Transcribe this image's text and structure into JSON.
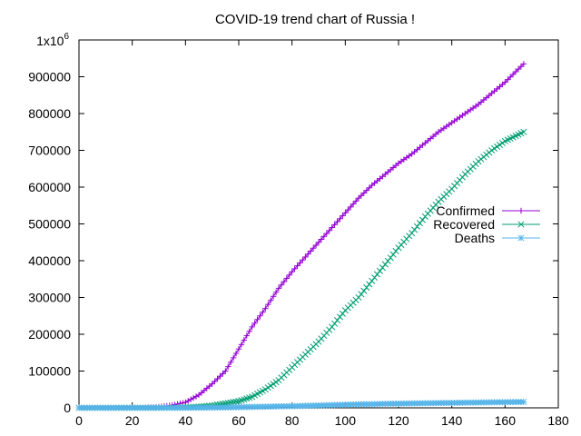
{
  "chart_data": {
    "type": "line",
    "title": "COVID-19 trend chart of Russia !",
    "xlabel": "",
    "ylabel": "",
    "xlim": [
      0,
      180
    ],
    "ylim": [
      0,
      1000000
    ],
    "x_ticks": [
      0,
      20,
      40,
      60,
      80,
      100,
      120,
      140,
      160,
      180
    ],
    "y_ticks": [
      0,
      100000,
      200000,
      300000,
      400000,
      500000,
      600000,
      700000,
      800000,
      900000
    ],
    "y_top_label_base": "1x10",
    "y_top_label_exp": "6",
    "grid": false,
    "legend": "right",
    "x": [
      0,
      10,
      20,
      25,
      30,
      35,
      40,
      45,
      50,
      55,
      60,
      65,
      70,
      75,
      80,
      85,
      90,
      95,
      100,
      105,
      110,
      115,
      120,
      125,
      130,
      135,
      140,
      145,
      150,
      155,
      160,
      167
    ],
    "series": [
      {
        "name": "Confirmed",
        "color": "#9400d3",
        "marker": "plus",
        "values": [
          0,
          100,
          300,
          900,
          2500,
          7000,
          15000,
          35000,
          65000,
          100000,
          160000,
          220000,
          270000,
          325000,
          370000,
          410000,
          450000,
          490000,
          530000,
          570000,
          605000,
          635000,
          665000,
          690000,
          720000,
          750000,
          775000,
          800000,
          825000,
          855000,
          885000,
          935000
        ]
      },
      {
        "name": "Recovered",
        "color": "#009e73",
        "marker": "cross",
        "values": [
          0,
          10,
          50,
          100,
          200,
          500,
          1500,
          3000,
          6000,
          12000,
          18000,
          30000,
          50000,
          75000,
          110000,
          145000,
          180000,
          220000,
          265000,
          300000,
          345000,
          390000,
          435000,
          475000,
          520000,
          560000,
          595000,
          635000,
          670000,
          700000,
          725000,
          750000
        ]
      },
      {
        "name": "Deaths",
        "color": "#56b4e9",
        "marker": "star",
        "values": [
          0,
          0,
          1,
          5,
          20,
          50,
          150,
          400,
          700,
          1000,
          1800,
          2500,
          3200,
          4000,
          4500,
          5500,
          6500,
          7500,
          8500,
          9500,
          10000,
          11000,
          11500,
          12000,
          12500,
          13000,
          13500,
          14000,
          14500,
          15000,
          15500,
          16000
        ]
      }
    ]
  }
}
